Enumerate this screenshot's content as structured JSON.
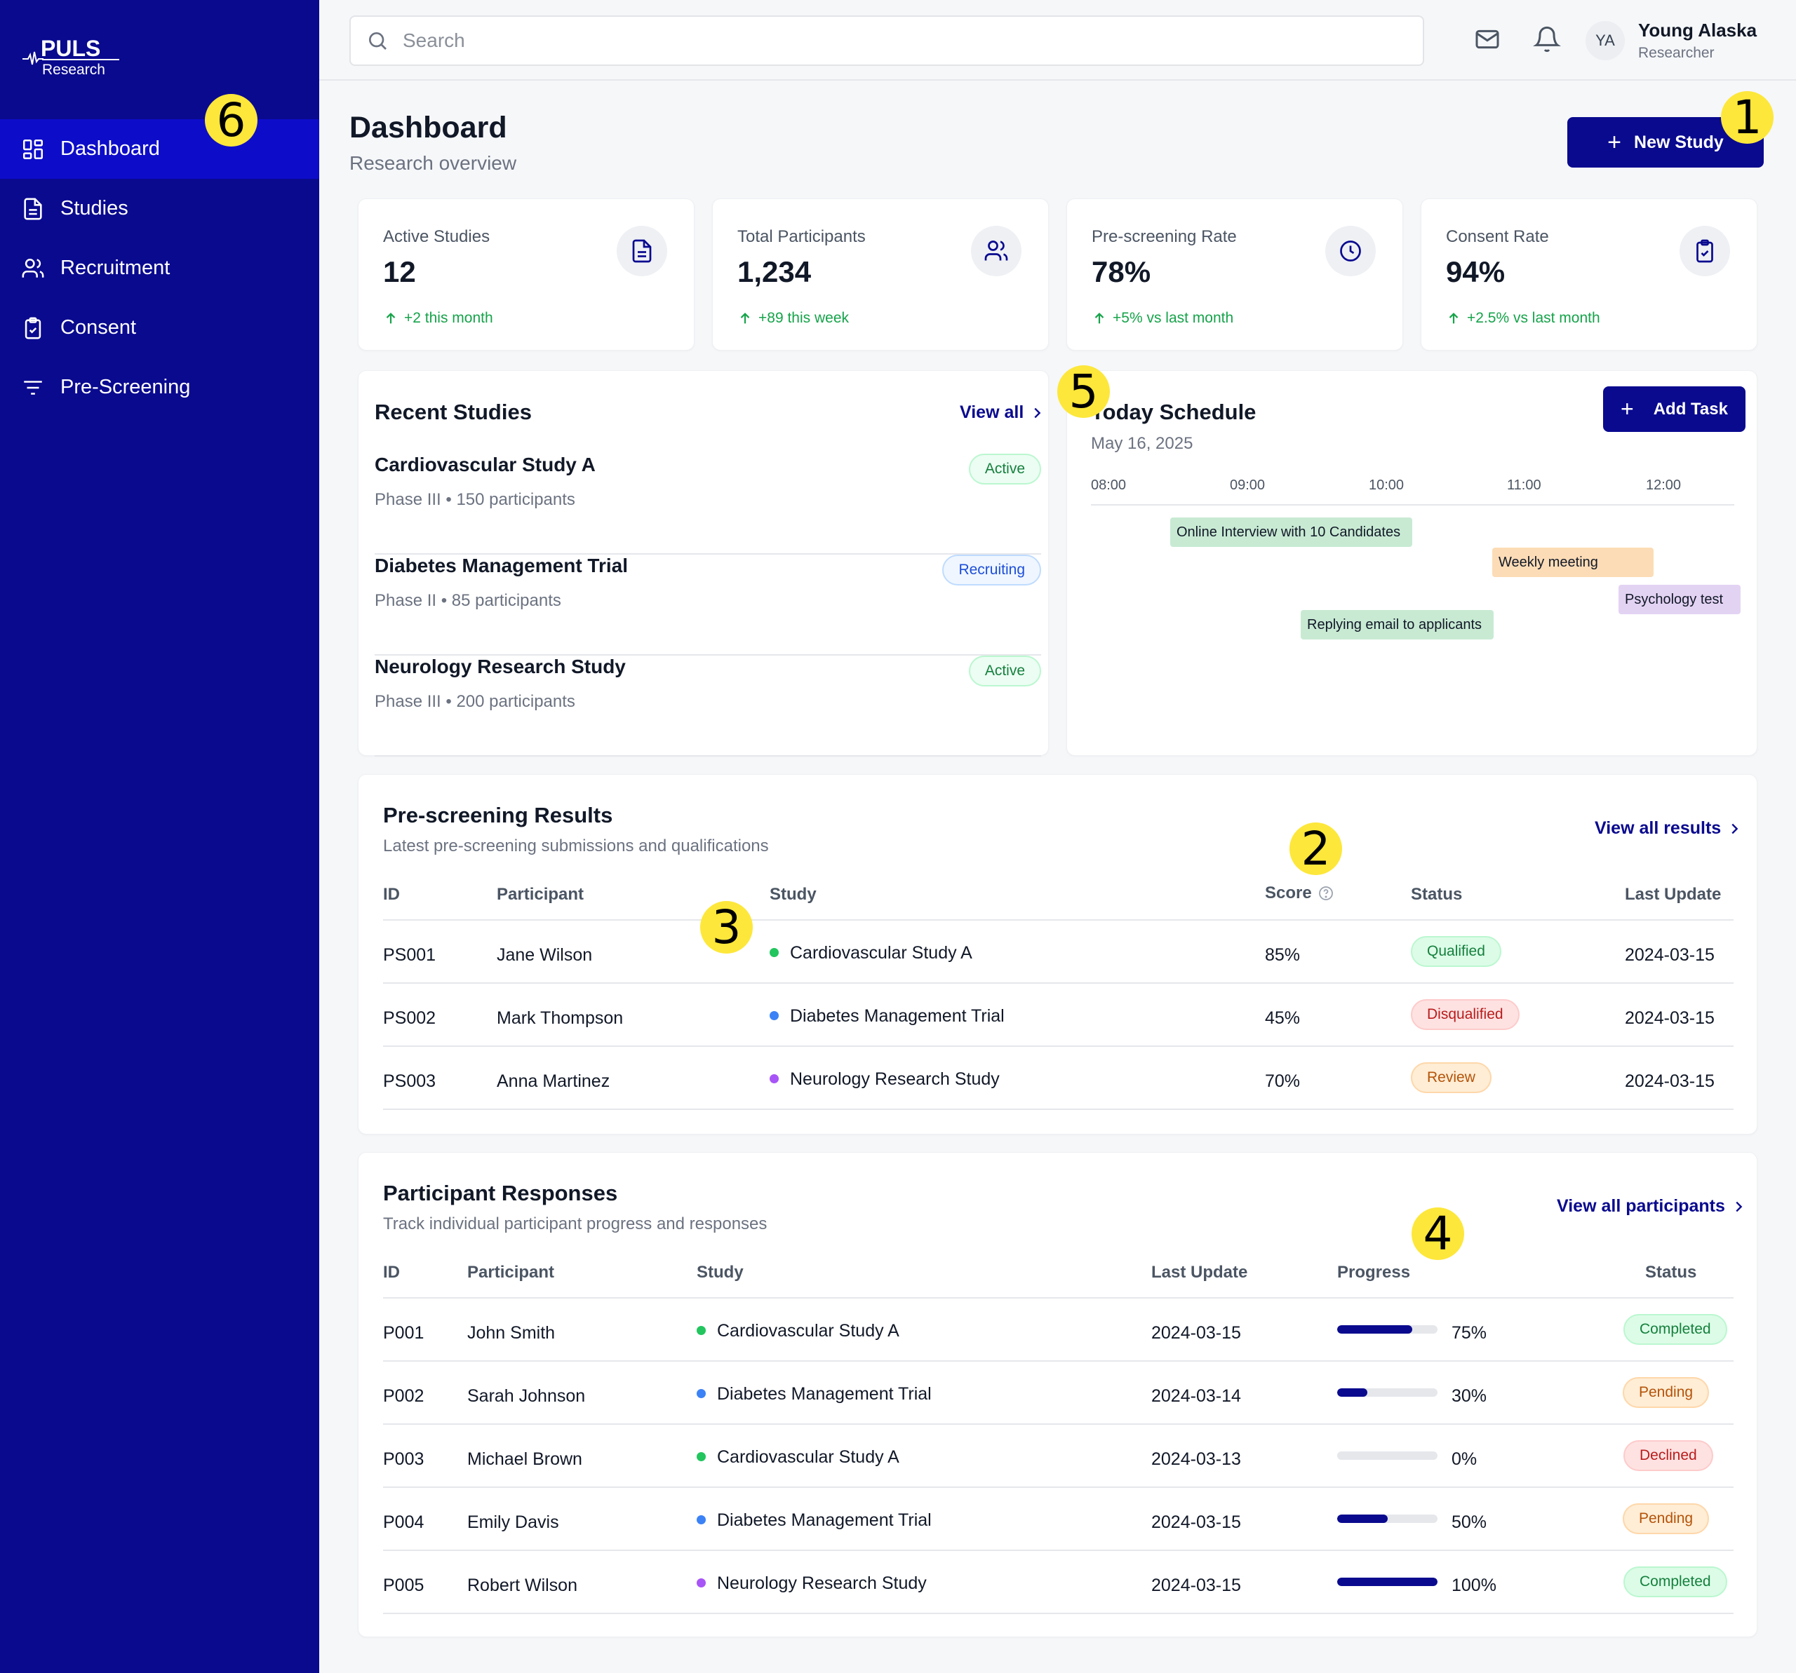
{
  "brand": {
    "name": "PULS",
    "sub": "Research"
  },
  "sidebar": {
    "items": [
      {
        "label": "Dashboard",
        "icon": "dashboard-icon",
        "active": true
      },
      {
        "label": "Studies",
        "icon": "document-icon"
      },
      {
        "label": "Recruitment",
        "icon": "users-icon"
      },
      {
        "label": "Consent",
        "icon": "clipboard-check-icon"
      },
      {
        "label": "Pre-Screening",
        "icon": "filter-icon"
      }
    ]
  },
  "header": {
    "search_placeholder": "Search",
    "user": {
      "initials": "YA",
      "name": "Young Alaska",
      "role": "Researcher"
    }
  },
  "page": {
    "title": "Dashboard",
    "subtitle": "Research overview",
    "new_study_label": "New Study"
  },
  "stats": [
    {
      "label": "Active Studies",
      "value": "12",
      "change": "+2 this month",
      "icon": "document-icon"
    },
    {
      "label": "Total Participants",
      "value": "1,234",
      "change": "+89 this week",
      "icon": "users-icon"
    },
    {
      "label": "Pre-screening Rate",
      "value": "78%",
      "change": "+5% vs last month",
      "icon": "clock-icon"
    },
    {
      "label": "Consent Rate",
      "value": "94%",
      "change": "+2.5% vs last month",
      "icon": "clipboard-check-icon"
    }
  ],
  "recent_studies": {
    "title": "Recent Studies",
    "view_all": "View all",
    "items": [
      {
        "name": "Cardiovascular Study A",
        "meta": "Phase III • 150 participants",
        "status": "Active"
      },
      {
        "name": "Diabetes Management Trial",
        "meta": "Phase II • 85 participants",
        "status": "Recruiting"
      },
      {
        "name": "Neurology Research Study",
        "meta": "Phase III • 200 participants",
        "status": "Active"
      }
    ]
  },
  "schedule": {
    "title": "Today Schedule",
    "date": "May 16, 2025",
    "add_task": "Add Task",
    "times": [
      "08:00",
      "09:00",
      "10:00",
      "11:00",
      "12:00"
    ],
    "tasks": [
      {
        "label": "Online Interview with 10 Candidates",
        "color": "#c8ead3"
      },
      {
        "label": "Weekly meeting",
        "color": "#fcdcb6"
      },
      {
        "label": "Psychology test",
        "color": "#e3d3f3"
      },
      {
        "label": "Replying email to applicants",
        "color": "#c8ead3"
      }
    ]
  },
  "prescreening": {
    "title": "Pre-screening Results",
    "subtitle": "Latest pre-screening submissions and qualifications",
    "view_all": "View all results",
    "columns": [
      "ID",
      "Participant",
      "Study",
      "Score",
      "Status",
      "Last Update"
    ],
    "rows": [
      {
        "id": "PS001",
        "participant": "Jane Wilson",
        "study": "Cardiovascular Study A",
        "dot": "#22c55e",
        "score": "85%",
        "status": "Qualified",
        "updated": "2024-03-15"
      },
      {
        "id": "PS002",
        "participant": "Mark Thompson",
        "study": "Diabetes Management Trial",
        "dot": "#3b82f6",
        "score": "45%",
        "status": "Disqualified",
        "updated": "2024-03-15"
      },
      {
        "id": "PS003",
        "participant": "Anna Martinez",
        "study": "Neurology Research Study",
        "dot": "#a855f7",
        "score": "70%",
        "status": "Review",
        "updated": "2024-03-15"
      }
    ]
  },
  "responses": {
    "title": "Participant Responses",
    "subtitle": "Track individual participant progress and responses",
    "view_all": "View all participants",
    "columns": [
      "ID",
      "Participant",
      "Study",
      "Last Update",
      "Progress",
      "Status"
    ],
    "rows": [
      {
        "id": "P001",
        "participant": "John Smith",
        "study": "Cardiovascular Study A",
        "dot": "#22c55e",
        "updated": "2024-03-15",
        "progress": 75,
        "progress_label": "75%",
        "status": "Completed"
      },
      {
        "id": "P002",
        "participant": "Sarah Johnson",
        "study": "Diabetes Management Trial",
        "dot": "#3b82f6",
        "updated": "2024-03-14",
        "progress": 30,
        "progress_label": "30%",
        "status": "Pending"
      },
      {
        "id": "P003",
        "participant": "Michael Brown",
        "study": "Cardiovascular Study A",
        "dot": "#22c55e",
        "updated": "2024-03-13",
        "progress": 0,
        "progress_label": "0%",
        "status": "Declined"
      },
      {
        "id": "P004",
        "participant": "Emily Davis",
        "study": "Diabetes Management Trial",
        "dot": "#3b82f6",
        "updated": "2024-03-15",
        "progress": 50,
        "progress_label": "50%",
        "status": "Pending"
      },
      {
        "id": "P005",
        "participant": "Robert Wilson",
        "study": "Neurology Research Study",
        "dot": "#a855f7",
        "updated": "2024-03-15",
        "progress": 100,
        "progress_label": "100%",
        "status": "Completed"
      }
    ]
  },
  "status_colors": {
    "Qualified": {
      "bg": "#dcfce7",
      "fg": "#15803d",
      "border": "#bbf7d0"
    },
    "Disqualified": {
      "bg": "#fee2e2",
      "fg": "#b91c1c",
      "border": "#fecaca"
    },
    "Review": {
      "bg": "#ffedd5",
      "fg": "#b45309",
      "border": "#fed7aa"
    },
    "Completed": {
      "bg": "#dcfce7",
      "fg": "#15803d",
      "border": "#bbf7d0"
    },
    "Pending": {
      "bg": "#ffedd5",
      "fg": "#b45309",
      "border": "#fed7aa"
    },
    "Declined": {
      "bg": "#fee2e2",
      "fg": "#b91c1c",
      "border": "#fecaca"
    }
  },
  "markers": [
    "1",
    "2",
    "3",
    "4",
    "5",
    "6"
  ]
}
